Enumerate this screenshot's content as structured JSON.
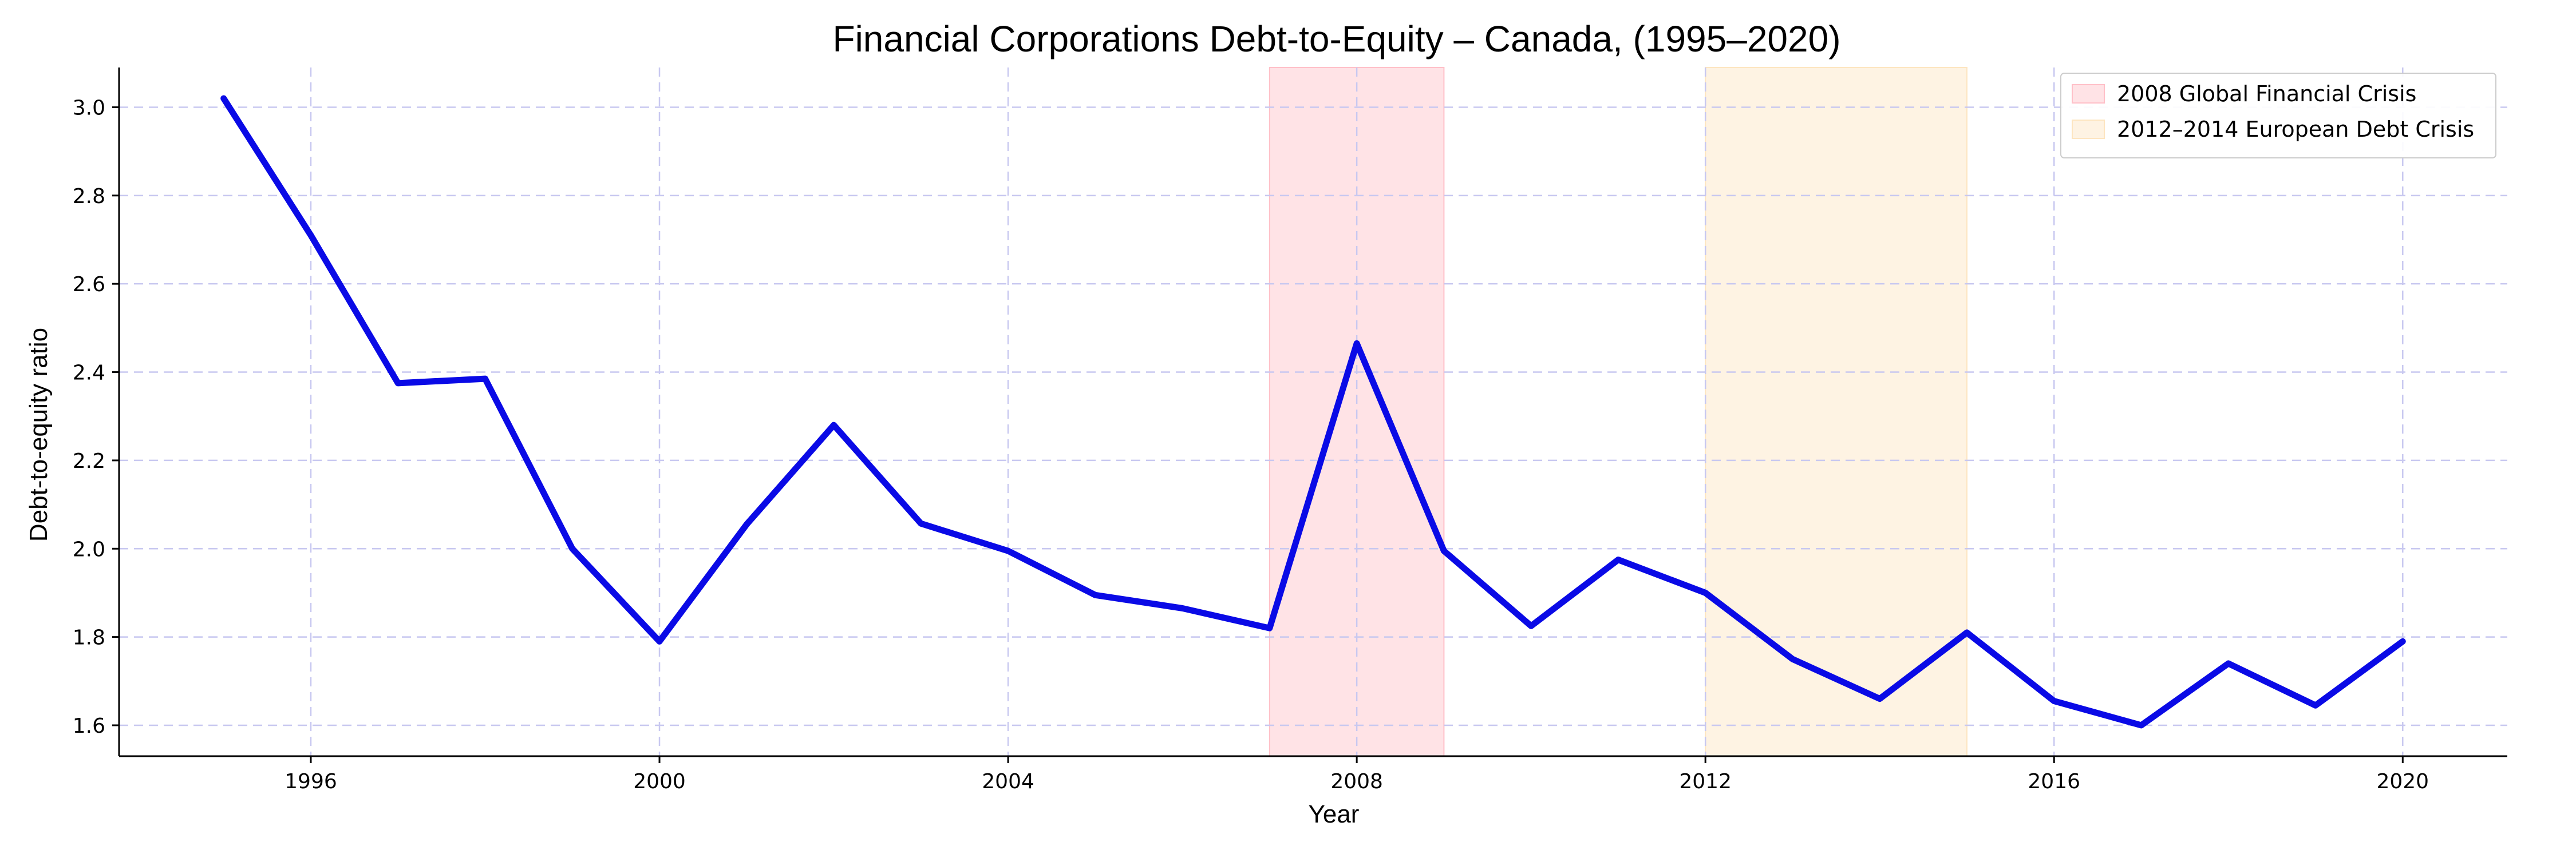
{
  "chart_data": {
    "type": "line",
    "title": "Financial Corporations Debt-to-Equity – Canada, (1995–2020)",
    "xlabel": "Year",
    "ylabel": "Debt-to-equity ratio",
    "xlim": [
      1993.8,
      2021.2
    ],
    "ylim": [
      1.53,
      3.09
    ],
    "x_ticks": [
      1996,
      2000,
      2004,
      2008,
      2012,
      2016,
      2020
    ],
    "y_ticks": [
      1.6,
      1.8,
      2.0,
      2.2,
      2.4,
      2.6,
      2.8,
      3.0
    ],
    "y_tick_labels": [
      "1.6",
      "1.8",
      "2.0",
      "2.2",
      "2.4",
      "2.6",
      "2.8",
      "3.0"
    ],
    "grid": true,
    "legend_position": "top-right",
    "series": [
      {
        "color": "#0a0ae6",
        "x": [
          1995,
          1996,
          1997,
          1998,
          1999,
          2000,
          2001,
          2002,
          2003,
          2004,
          2005,
          2006,
          2007,
          2008,
          2009,
          2010,
          2011,
          2012,
          2013,
          2014,
          2015,
          2016,
          2017,
          2018,
          2019,
          2020
        ],
        "values": [
          3.02,
          2.71,
          2.375,
          2.385,
          2.0,
          1.79,
          2.055,
          2.28,
          2.057,
          1.995,
          1.895,
          1.865,
          1.82,
          2.465,
          1.995,
          1.825,
          1.975,
          1.9,
          1.75,
          1.66,
          1.81,
          1.655,
          1.6,
          1.74,
          1.645,
          1.79
        ]
      }
    ],
    "shaded_regions": [
      {
        "label": "2008 Global Financial Crisis",
        "x_start": 2007,
        "x_end": 2009,
        "color": "#ffc0c8"
      },
      {
        "label": "2012–2014 European Debt Crisis",
        "x_start": 2012,
        "x_end": 2015,
        "color": "#fde5c0"
      }
    ]
  }
}
